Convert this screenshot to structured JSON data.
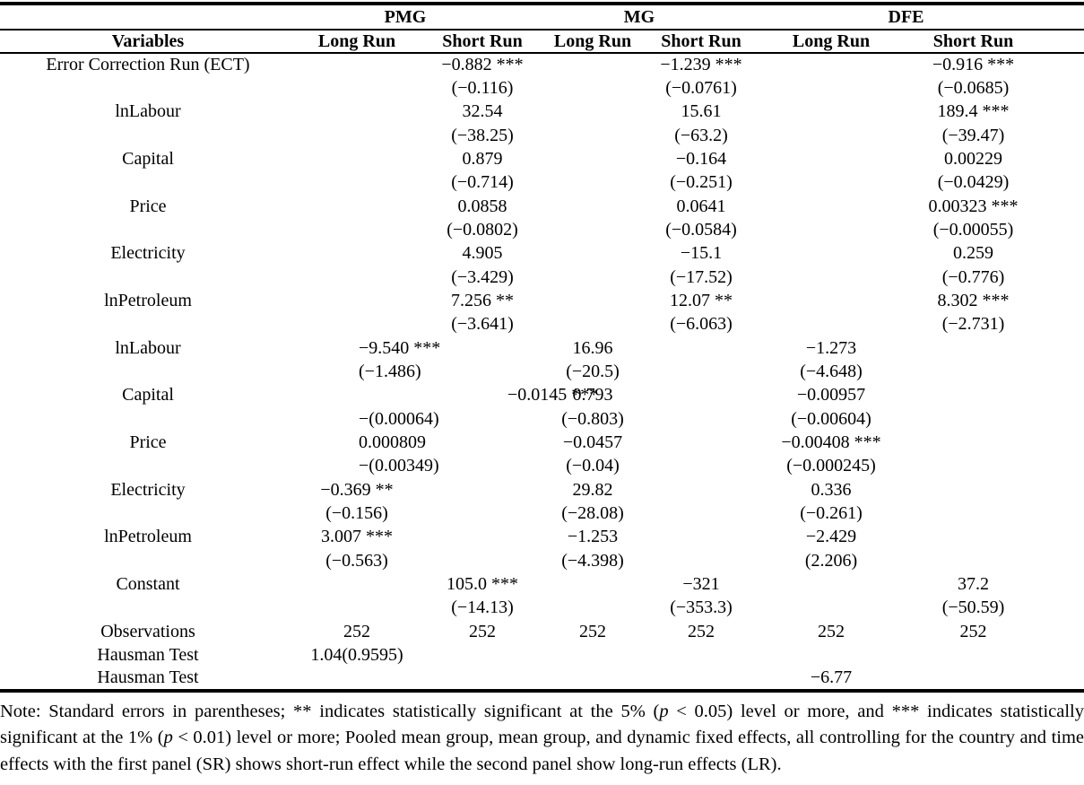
{
  "page": {
    "background_color": "#ffffff",
    "text_color": "#000000",
    "rule_color": "#000000"
  },
  "table": {
    "groups": [
      {
        "label": "PMG"
      },
      {
        "label": "MG"
      },
      {
        "label": "DFE"
      }
    ],
    "columns": [
      "Variables",
      "Long Run",
      "Short Run",
      "Long Run",
      "Short Run",
      "Long Run",
      "Short Run"
    ],
    "rows": [
      {
        "label": "Error Correction Run (ECT)",
        "cells": [
          "",
          "−0.882 ***",
          "",
          "−1.239 ***",
          "",
          "−0.916 ***"
        ]
      },
      {
        "label": "",
        "cells": [
          "",
          "(−0.116)",
          "",
          "(−0.0761)",
          "",
          "(−0.0685)"
        ]
      },
      {
        "label": "lnLabour",
        "cells": [
          "",
          "32.54",
          "",
          "15.61",
          "",
          "189.4 ***"
        ]
      },
      {
        "label": "",
        "cells": [
          "",
          "(−38.25)",
          "",
          "(−63.2)",
          "",
          "(−39.47)"
        ]
      },
      {
        "label": "Capital",
        "cells": [
          "",
          "0.879",
          "",
          "−0.164",
          "",
          "0.00229"
        ]
      },
      {
        "label": "",
        "cells": [
          "",
          "(−0.714)",
          "",
          "(−0.251)",
          "",
          "(−0.0429)"
        ]
      },
      {
        "label": "Price",
        "cells": [
          "",
          "0.0858",
          "",
          "0.0641",
          "",
          "0.00323 ***"
        ]
      },
      {
        "label": "",
        "cells": [
          "",
          "(−0.0802)",
          "",
          "(−0.0584)",
          "",
          "(−0.00055)"
        ]
      },
      {
        "label": "Electricity",
        "cells": [
          "",
          "4.905",
          "",
          "−15.1",
          "",
          "0.259"
        ]
      },
      {
        "label": "",
        "cells": [
          "",
          "(−3.429)",
          "",
          "(−17.52)",
          "",
          "(−0.776)"
        ]
      },
      {
        "label": "lnPetroleum",
        "cells": [
          "",
          "7.256 **",
          "",
          "12.07 **",
          "",
          "8.302 ***"
        ]
      },
      {
        "label": "",
        "cells": [
          "",
          "(−3.641)",
          "",
          "(−6.063)",
          "",
          "(−2.731)"
        ]
      },
      {
        "label": "lnLabour",
        "cells": [
          "−9.540 ***",
          "",
          "16.96",
          "",
          "−1.273",
          ""
        ]
      },
      {
        "label": "",
        "cells": [
          "(−1.486)",
          "",
          "(−20.5)",
          "",
          "(−4.648)",
          ""
        ]
      },
      {
        "label": "Capital",
        "cells": [
          "−0.0145 ***",
          "",
          "0.793",
          "",
          "−0.00957",
          ""
        ]
      },
      {
        "label": "",
        "cells": [
          "−(0.00064)",
          "",
          "(−0.803)",
          "",
          "(−0.00604)",
          ""
        ]
      },
      {
        "label": "Price",
        "cells": [
          "0.000809",
          "",
          "−0.0457",
          "",
          "−0.00408 ***",
          ""
        ]
      },
      {
        "label": "",
        "cells": [
          "−(0.00349)",
          "",
          "(−0.04)",
          "",
          "(−0.000245)",
          ""
        ]
      },
      {
        "label": "Electricity",
        "cells": [
          "−0.369 **",
          "",
          "29.82",
          "",
          "0.336",
          ""
        ]
      },
      {
        "label": "",
        "cells": [
          "(−0.156)",
          "",
          "(−28.08)",
          "",
          "(−0.261)",
          ""
        ]
      },
      {
        "label": "lnPetroleum",
        "cells": [
          "3.007 ***",
          "",
          "−1.253",
          "",
          "−2.429",
          ""
        ]
      },
      {
        "label": "",
        "cells": [
          "(−0.563)",
          "",
          "(−4.398)",
          "",
          "(2.206)",
          ""
        ]
      },
      {
        "label": "Constant",
        "cells": [
          "",
          "105.0 ***",
          "",
          "−321",
          "",
          "37.2"
        ]
      },
      {
        "label": "",
        "cells": [
          "",
          "(−14.13)",
          "",
          "(−353.3)",
          "",
          "(−50.59)"
        ]
      },
      {
        "label": "Observations",
        "cells": [
          "252",
          "252",
          "252",
          "252",
          "252",
          "252"
        ]
      },
      {
        "label": "Hausman Test",
        "cells": [
          "1.04(0.9595)",
          "",
          "",
          "",
          "",
          ""
        ]
      },
      {
        "label": "Hausman Test",
        "cells": [
          "",
          "",
          "",
          "",
          "−6.77",
          ""
        ]
      }
    ]
  },
  "note": {
    "segments": [
      {
        "text": "Note: Standard errors in parentheses; ** indicates statistically significant at the 5% (",
        "italic": false
      },
      {
        "text": "p",
        "italic": true
      },
      {
        "text": " < 0.05) level or more, and *** indicates statistically significant at the 1% (",
        "italic": false
      },
      {
        "text": "p",
        "italic": true
      },
      {
        "text": " < 0.01) level or more; Pooled mean group, mean group, and dynamic fixed effects, all controlling for the country and time effects with the first panel (SR) shows short-run effect while the second panel show long-run effects (LR).",
        "italic": false
      }
    ]
  }
}
